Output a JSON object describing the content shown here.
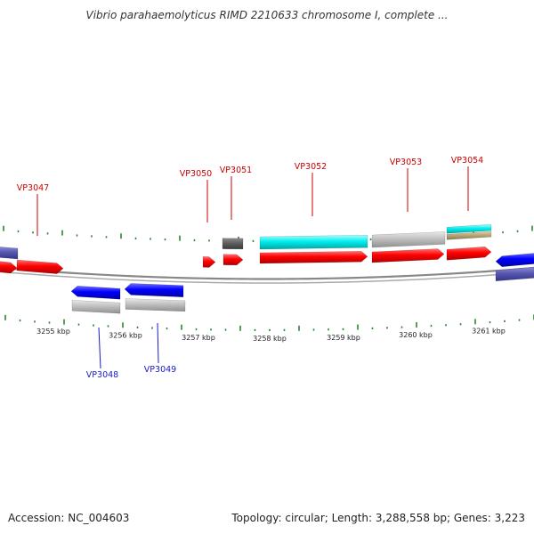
{
  "title": "Vibrio parahaemolyticus RIMD 2210633 chromosome I, complete ...",
  "footer": {
    "accession": "Accession: NC_004603",
    "summary": "Topology: circular; Length: 3,288,558 bp; Genes: 3,223"
  },
  "colors": {
    "forward_gene": "#ff0000",
    "reverse_gene": "#0000ff",
    "forward_label": "#cc0000",
    "reverse_label": "#1a1acc",
    "cds_gray": "#c0c0c0",
    "cds_cyan": "#00eeee",
    "cds_dark": "#606060",
    "cds_tan": "#b8a878",
    "cds_slate": "#5a5ab0",
    "backbone": "#888888",
    "gc_ticks": "#2a8a2a"
  },
  "scale_ticks": [
    "3255 kbp",
    "3256 kbp",
    "3257 kbp",
    "3258 kbp",
    "3259 kbp",
    "3260 kbp",
    "3261 kbp"
  ],
  "forward_genes": [
    "VP3047",
    "VP3050",
    "VP3051",
    "VP3052",
    "VP3053",
    "VP3054"
  ],
  "reverse_genes": [
    "VP3048",
    "VP3049"
  ]
}
